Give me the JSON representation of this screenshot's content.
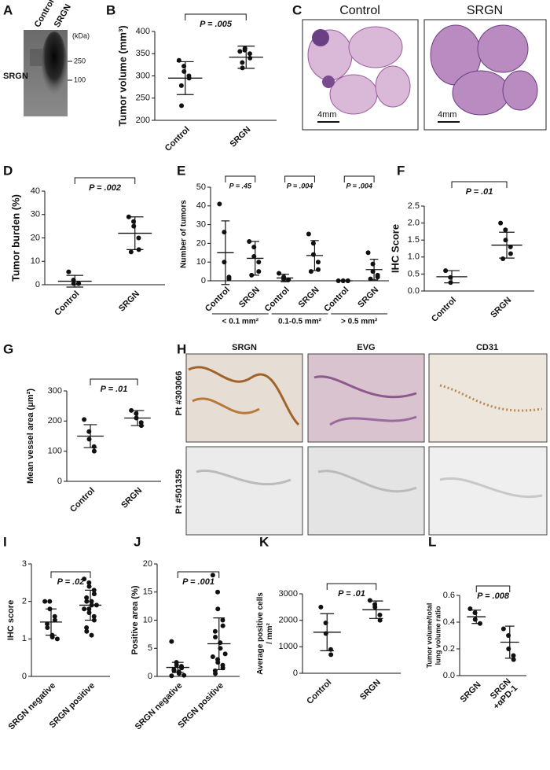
{
  "panels": {
    "A": {
      "letter": "A",
      "lanes": [
        "Control",
        "SRGN"
      ],
      "unit": "(kDa)",
      "markers": [
        250,
        100
      ],
      "protein": "SRGN"
    },
    "C": {
      "letter": "C",
      "titles": [
        "Control",
        "SRGN"
      ],
      "scale_bars": [
        "4mm",
        "4mm"
      ]
    },
    "H": {
      "letter": "H",
      "stains": [
        "SRGN",
        "EVG",
        "CD31"
      ],
      "patients": [
        "Pt #303066",
        "Pt #501359"
      ]
    }
  },
  "chart_data": [
    {
      "panel": "B",
      "type": "dot",
      "ylabel": "Tumor volume (mm³)",
      "categories": [
        "Control",
        "SRGN"
      ],
      "values": [
        [
          335,
          322,
          310,
          300,
          295,
          278,
          233
        ],
        [
          355,
          358,
          362,
          350,
          340,
          330,
          318
        ]
      ],
      "mean": [
        295,
        342
      ],
      "sd": [
        37,
        25
      ],
      "p_values": [
        "P = .005"
      ],
      "ylim": [
        200,
        400
      ],
      "yticks": [
        200,
        250,
        300,
        350,
        400
      ]
    },
    {
      "panel": "D",
      "type": "dot",
      "ylabel": "Tumor burden (%)",
      "categories": [
        "Control",
        "SRGN"
      ],
      "values": [
        [
          5.5,
          2,
          0.5,
          0.5,
          0.5
        ],
        [
          29,
          27,
          25,
          20,
          15,
          14
        ]
      ],
      "mean": [
        1.5,
        22
      ],
      "sd": [
        2.5,
        7
      ],
      "p_values": [
        "P = .002"
      ],
      "ylim": [
        0,
        40
      ],
      "yticks": [
        0,
        10,
        20,
        30,
        40
      ]
    },
    {
      "panel": "E",
      "type": "dot",
      "ylabel": "Number of tumors",
      "categories": [
        "Control",
        "SRGN",
        "Control",
        "SRGN",
        "Control",
        "SRGN"
      ],
      "groups": [
        "< 0.1 mm²",
        "0.1-0.5 mm²",
        "> 0.5 mm²"
      ],
      "values": [
        [
          41,
          26,
          10,
          2,
          1
        ],
        [
          21,
          18,
          13,
          10,
          5,
          3
        ],
        [
          4,
          2,
          1,
          0.5,
          0.5
        ],
        [
          25,
          20,
          14,
          10,
          6,
          5
        ],
        [
          0,
          0,
          0,
          0,
          0
        ],
        [
          15,
          9,
          5,
          3,
          2,
          1
        ]
      ],
      "mean": [
        15,
        12,
        1.5,
        13.5,
        0,
        6
      ],
      "sd": [
        17,
        9,
        2,
        8,
        0,
        5.5
      ],
      "p_values": [
        "P = .45",
        "P = .004",
        "P = .004"
      ],
      "ylim": [
        0,
        50
      ],
      "yticks": [
        0,
        10,
        20,
        30,
        40,
        50
      ]
    },
    {
      "panel": "F",
      "type": "dot",
      "ylabel": "IHC Score",
      "categories": [
        "Control",
        "SRGN"
      ],
      "values": [
        [
          0.6,
          0.4,
          0.25
        ],
        [
          2.0,
          1.8,
          1.5,
          1.3,
          1.1,
          0.95
        ]
      ],
      "mean": [
        0.42,
        1.35
      ],
      "sd": [
        0.18,
        0.38
      ],
      "p_values": [
        "P = .01"
      ],
      "ylim": [
        0,
        2.5
      ],
      "yticks": [
        {
          "value": 0,
          "label": "0.0"
        },
        0.5,
        {
          "value": 1,
          "label": "1.0"
        },
        1.5,
        {
          "value": 2,
          "label": "2.0"
        },
        2.5
      ]
    },
    {
      "panel": "G",
      "type": "dot",
      "ylabel": "Mean vessel area (μm²)",
      "categories": [
        "Control",
        "SRGN"
      ],
      "values": [
        [
          205,
          165,
          140,
          115,
          100
        ],
        [
          235,
          225,
          210,
          195,
          185
        ]
      ],
      "mean": [
        150,
        210
      ],
      "sd": [
        38,
        25
      ],
      "p_values": [
        "P = .01"
      ],
      "ylim": [
        0,
        300
      ],
      "yticks": [
        0,
        100,
        200,
        300
      ]
    },
    {
      "panel": "I",
      "type": "dot",
      "ylabel": "IHC score",
      "categories": [
        "SRGN negative",
        "SRGN positive"
      ],
      "values": [
        [
          2.0,
          2.0,
          1.8,
          1.6,
          1.5,
          1.4,
          1.3,
          1.1,
          1.05,
          1.0
        ],
        [
          2.6,
          2.5,
          2.4,
          2.3,
          2.2,
          2.1,
          2.0,
          2.0,
          1.9,
          1.9,
          1.8,
          1.8,
          1.7,
          1.6,
          1.5,
          1.3,
          1.2,
          1.1
        ]
      ],
      "mean": [
        1.45,
        1.9
      ],
      "sd": [
        0.35,
        0.4
      ],
      "p_values": [
        "P = .02"
      ],
      "ylim": [
        0,
        3
      ],
      "yticks": [
        0,
        1,
        2,
        3
      ]
    },
    {
      "panel": "J",
      "type": "dot",
      "ylabel": "Positive area (%)",
      "categories": [
        "SRGN negative",
        "SRGN positive"
      ],
      "values": [
        [
          6.2,
          2.5,
          2,
          1.8,
          1.5,
          1.2,
          1,
          0.8,
          0.5,
          0.2,
          0.1
        ],
        [
          18,
          15,
          12,
          10,
          9,
          8,
          7,
          6,
          5,
          4,
          3.5,
          3,
          2.5,
          2,
          1.5,
          1,
          0.5
        ]
      ],
      "mean": [
        1.6,
        5.8
      ],
      "sd": [
        0.9,
        4.6
      ],
      "p_values": [
        "P = .001"
      ],
      "ylim": [
        0,
        20
      ],
      "yticks": [
        0,
        5,
        10,
        15,
        20
      ]
    },
    {
      "panel": "K",
      "type": "dot",
      "ylabel": [
        "Average positive cells",
        "/ mm²"
      ],
      "categories": [
        "Control",
        "SRGN"
      ],
      "values": [
        [
          2500,
          1900,
          1500,
          900,
          700
        ],
        [
          2750,
          2600,
          2500,
          2200,
          2000
        ]
      ],
      "mean": [
        1550,
        2400
      ],
      "sd": [
        700,
        330
      ],
      "p_values": [
        "P = .01"
      ],
      "ylim": [
        0,
        3000
      ],
      "yticks": [
        0,
        1000,
        2000,
        3000
      ]
    },
    {
      "panel": "L",
      "type": "dot",
      "ylabel": [
        "Tumor volume/total",
        "lung volume ratio"
      ],
      "categories": [
        "SRGN",
        [
          "SRGN",
          "+αPD-1"
        ]
      ],
      "values": [
        [
          0.5,
          0.47,
          0.42,
          0.39
        ],
        [
          0.35,
          0.3,
          0.2,
          0.15,
          0.12
        ]
      ],
      "mean": [
        0.44,
        0.25
      ],
      "sd": [
        0.05,
        0.12
      ],
      "p_values": [
        "P = .008"
      ],
      "ylim": [
        0,
        0.6
      ],
      "yticks": [
        {
          "value": 0,
          "label": "0.0"
        },
        0.2,
        0.4,
        0.6
      ]
    }
  ]
}
